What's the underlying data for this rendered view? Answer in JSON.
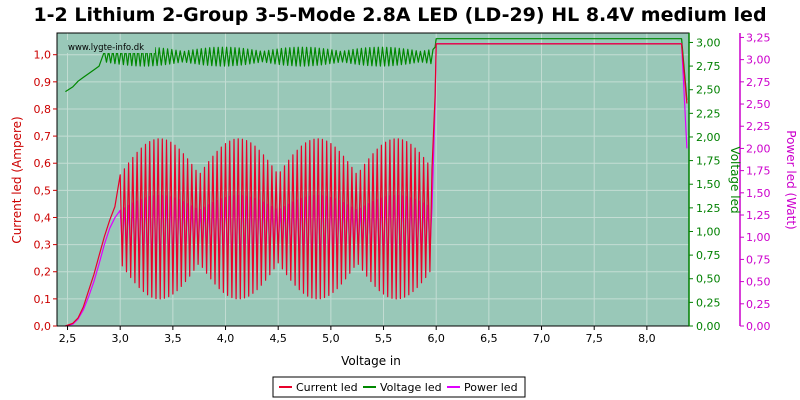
{
  "chart_data": {
    "type": "line",
    "title": "1-2 Lithium 2-Group 3-5-Mode 2.8A LED (LD-29) HL 8.4V medium led",
    "watermark": "www.lygte-info.dk",
    "xlabel": "Voltage in",
    "ylabel_left": "Current led (Ampere)",
    "ylabel_right1": "Voltage led",
    "ylabel_right2": "Power led (Watt)",
    "xlim": [
      2.4,
      8.4
    ],
    "ylim_left": [
      0,
      1.08
    ],
    "ylim_right1": [
      0,
      3.1
    ],
    "ylim_right2": [
      0,
      3.3
    ],
    "x_ticks": [
      "2,5",
      "3,0",
      "3,5",
      "4,0",
      "4,5",
      "5,0",
      "5,5",
      "6,0",
      "6,5",
      "7,0",
      "7,5",
      "8,0"
    ],
    "y_left_ticks": [
      "0,0",
      "0,1",
      "0,2",
      "0,3",
      "0,4",
      "0,5",
      "0,6",
      "0,7",
      "0,8",
      "0,9",
      "1,0"
    ],
    "y_right1_ticks": [
      "0,00",
      "0,25",
      "0,50",
      "0,75",
      "1,00",
      "1,25",
      "1,50",
      "1,75",
      "2,00",
      "2,25",
      "2,50",
      "2,75",
      "3,00"
    ],
    "y_right2_ticks": [
      "0,00",
      "0,25",
      "0,50",
      "0,75",
      "1,00",
      "1,25",
      "1,50",
      "1,75",
      "2,00",
      "2,25",
      "2,50",
      "2,75",
      "3,00",
      "3,25"
    ],
    "legend_position": "bottom-center",
    "grid": true,
    "colors": {
      "plot_bg": "#99c8b8",
      "grid": "#c4ddd4",
      "current": "#e8002a",
      "voltage": "#008800",
      "power": "#e000ff",
      "left_axis": "#cc0000",
      "right_axis1": "#008000",
      "right_axis2": "#cc00cc"
    },
    "series": [
      {
        "name": "Current led",
        "axis": "left",
        "x": [
          2.48,
          2.55,
          2.6,
          2.65,
          2.7,
          2.75,
          2.8,
          2.85,
          2.9,
          2.95,
          3.0,
          3.1,
          3.2,
          3.3,
          3.4,
          3.5,
          3.6,
          3.7,
          3.8,
          3.9,
          4.0,
          4.1,
          4.2,
          4.3,
          4.4,
          4.5,
          4.6,
          4.7,
          4.8,
          4.9,
          5.0,
          5.1,
          5.2,
          5.3,
          5.4,
          5.5,
          5.6,
          5.7,
          5.8,
          5.9,
          5.97,
          5.99,
          6.0,
          6.5,
          7.0,
          7.5,
          8.0,
          8.33,
          8.38
        ],
        "y": [
          0.0,
          0.01,
          0.03,
          0.07,
          0.13,
          0.19,
          0.26,
          0.33,
          0.39,
          0.44,
          0.46,
          0.4,
          0.42,
          0.4,
          0.41,
          0.42,
          0.42,
          0.41,
          0.4,
          0.41,
          0.42,
          0.41,
          0.4,
          0.42,
          0.41,
          0.41,
          0.42,
          0.4,
          0.41,
          0.42,
          0.41,
          0.42,
          0.4,
          0.41,
          0.42,
          0.41,
          0.42,
          0.4,
          0.41,
          0.42,
          0.43,
          0.85,
          1.04,
          1.04,
          1.04,
          1.04,
          1.04,
          1.04,
          0.82
        ],
        "oscillation": {
          "from": 3.0,
          "to": 5.97,
          "low": 0.1,
          "high": 0.69
        }
      },
      {
        "name": "Voltage led",
        "axis": "right1",
        "x": [
          2.48,
          2.55,
          2.6,
          2.65,
          2.7,
          2.75,
          2.8,
          2.85,
          2.9,
          3.0,
          3.2,
          3.4,
          3.6,
          3.8,
          4.0,
          4.2,
          4.4,
          4.6,
          4.8,
          5.0,
          5.2,
          5.4,
          5.6,
          5.8,
          5.97,
          5.99,
          6.0,
          6.5,
          7.0,
          7.5,
          8.0,
          8.33,
          8.38
        ],
        "y": [
          2.48,
          2.53,
          2.59,
          2.63,
          2.67,
          2.71,
          2.75,
          2.79,
          2.83,
          2.86,
          2.86,
          2.85,
          2.86,
          2.85,
          2.86,
          2.85,
          2.86,
          2.85,
          2.86,
          2.86,
          2.85,
          2.86,
          2.85,
          2.86,
          2.86,
          2.95,
          3.04,
          3.04,
          3.04,
          3.04,
          3.04,
          3.04,
          2.39
        ],
        "oscillation": {
          "from": 2.85,
          "to": 5.97,
          "low": 2.75,
          "high": 2.95
        }
      },
      {
        "name": "Power led",
        "axis": "right2",
        "x": [
          2.48,
          2.55,
          2.6,
          2.65,
          2.7,
          2.75,
          2.8,
          2.85,
          2.9,
          2.95,
          3.0,
          3.1,
          3.2,
          3.3,
          3.4,
          3.5,
          3.6,
          3.7,
          3.8,
          3.9,
          4.0,
          4.1,
          4.2,
          4.3,
          4.4,
          4.5,
          4.6,
          4.7,
          4.8,
          4.9,
          5.0,
          5.1,
          5.2,
          5.3,
          5.4,
          5.5,
          5.6,
          5.7,
          5.8,
          5.9,
          5.97,
          5.99,
          6.0,
          6.5,
          7.0,
          7.5,
          8.0,
          8.33,
          8.38
        ],
        "y": [
          0.0,
          0.02,
          0.08,
          0.18,
          0.33,
          0.5,
          0.7,
          0.92,
          1.1,
          1.22,
          1.28,
          1.14,
          1.2,
          1.14,
          1.17,
          1.2,
          1.2,
          1.17,
          1.14,
          1.17,
          1.2,
          1.17,
          1.14,
          1.2,
          1.17,
          1.17,
          1.2,
          1.14,
          1.17,
          1.2,
          1.17,
          1.2,
          1.14,
          1.17,
          1.2,
          1.17,
          1.2,
          1.14,
          1.17,
          1.2,
          1.22,
          2.5,
          3.18,
          3.18,
          3.18,
          3.18,
          3.18,
          3.18,
          2.0
        ],
        "oscillation": {
          "from": 3.0,
          "to": 5.97,
          "low": 0.73,
          "high": 1.47
        }
      }
    ]
  }
}
